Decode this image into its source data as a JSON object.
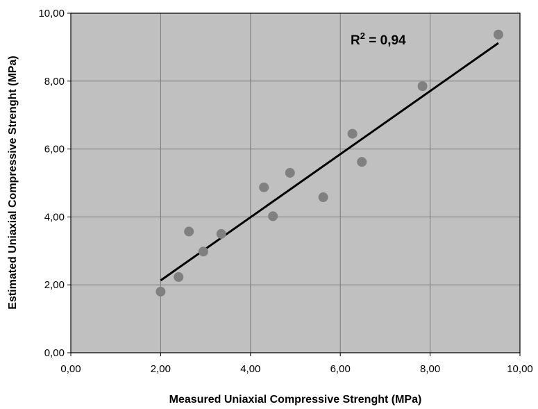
{
  "chart_data": {
    "type": "scatter",
    "xlabel": "Measured Uniaxial Compressive Strenght (MPa)",
    "ylabel": "Estimated Uniaxial Compressive Strenght (MPa)",
    "xlim": [
      0,
      10
    ],
    "ylim": [
      0,
      10
    ],
    "x_ticks": [
      "0,00",
      "2,00",
      "4,00",
      "6,00",
      "8,00",
      "10,00"
    ],
    "y_ticks": [
      "0,00",
      "2,00",
      "4,00",
      "6,00",
      "8,00",
      "10,00"
    ],
    "grid": true,
    "plot_background": "#c0c0c0",
    "point_color": "#808080",
    "line_color": "#000000",
    "series": [
      {
        "points": [
          {
            "x": 2.0,
            "y": 1.8
          },
          {
            "x": 2.4,
            "y": 2.23
          },
          {
            "x": 2.63,
            "y": 3.57
          },
          {
            "x": 2.95,
            "y": 2.98
          },
          {
            "x": 3.35,
            "y": 3.5
          },
          {
            "x": 4.3,
            "y": 4.87
          },
          {
            "x": 4.5,
            "y": 4.02
          },
          {
            "x": 4.88,
            "y": 5.3
          },
          {
            "x": 5.62,
            "y": 4.58
          },
          {
            "x": 6.27,
            "y": 6.45
          },
          {
            "x": 6.48,
            "y": 5.62
          },
          {
            "x": 7.83,
            "y": 7.85
          },
          {
            "x": 9.52,
            "y": 9.37
          }
        ]
      }
    ],
    "trendline": {
      "x": [
        2.0,
        9.52
      ],
      "y": [
        2.13,
        9.12
      ]
    },
    "annotation": {
      "base": "R",
      "sup": "2",
      "text": " = 0,94"
    }
  }
}
